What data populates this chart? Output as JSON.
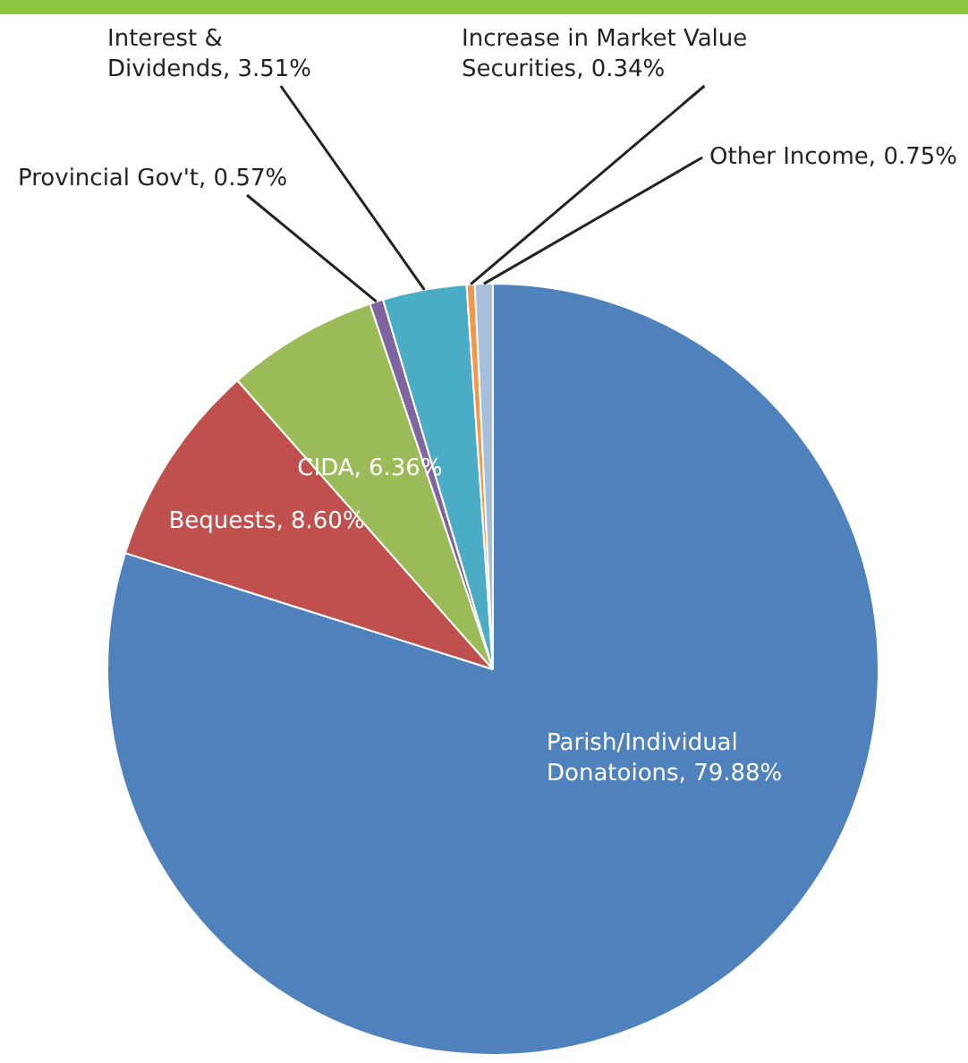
{
  "chart_data": {
    "type": "pie",
    "categories": [
      "Parish/Individual Donatoions",
      "Bequests",
      "CIDA",
      "Provincial Gov't",
      "Interest & Dividends",
      "Increase in Market Value Securities",
      "Other Income"
    ],
    "values": [
      79.88,
      8.6,
      6.36,
      0.57,
      3.51,
      0.34,
      0.75
    ],
    "colors": [
      "#4f81bd",
      "#c0504d",
      "#9bbb59",
      "#8064a2",
      "#4bacc6",
      "#f79646",
      "#a9bedb"
    ],
    "value_labels": [
      "79.88%",
      "8.60%",
      "6.36%",
      "0.57%",
      "3.51%",
      "0.34%",
      "0.75%"
    ],
    "legend": false
  }
}
